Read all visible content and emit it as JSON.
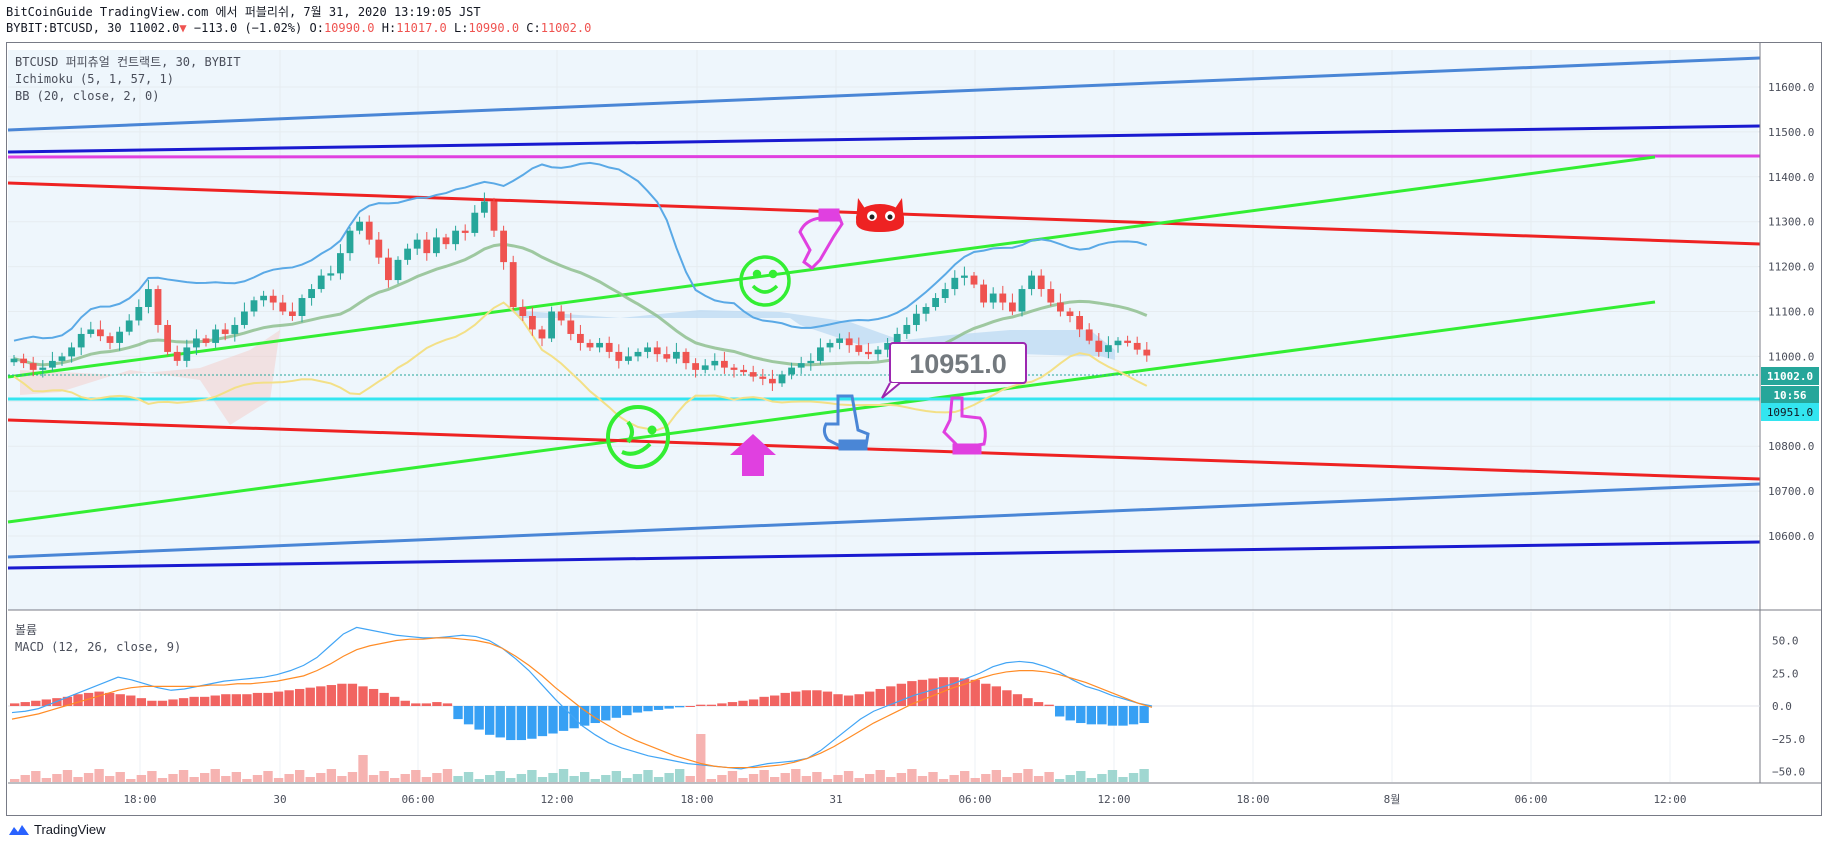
{
  "header": {
    "line1": "BitCoinGuide TradingView.com 에서 퍼블리쉬, 7월 31, 2020 13:19:05 JST",
    "symbol": "BYBIT:BTCUSD, 30",
    "last": "11002.0",
    "arrow": "▼",
    "change": "−113.0 (−1.02%)",
    "o_label": "O:",
    "o": "10990.0",
    "h_label": "H:",
    "h": "11017.0",
    "l_label": "L:",
    "l": "10990.0",
    "c_label": "C:",
    "c": "11002.0"
  },
  "legend": {
    "symbol": "BTCUSD 퍼피츄얼 컨트랙트, 30, BYBIT",
    "ichimoku": "Ichimoku (5, 1, 57, 1)",
    "bb": "BB (20, close, 2, 0)"
  },
  "macd_legend": {
    "volume": "볼륨",
    "macd": "MACD (12, 26, close, 9)"
  },
  "footer": {
    "brand": "TradingView"
  },
  "annotation": {
    "price_box": "10951.0"
  },
  "price_labels": {
    "last": "11002.0",
    "countdown": "10:56",
    "hline": "10951.0"
  },
  "colors": {
    "up": "#26a69a",
    "down": "#ef5350",
    "red_candle": "#ef5350",
    "bb": "#5aa9e6",
    "trend_green": "#33ee33",
    "trend_red": "#ee2222",
    "channel_blue": "#4a86d6",
    "channel_navy": "#1a1ad0",
    "magenta": "#e040e0",
    "cyan": "#33e5f0",
    "macd_line": "#42a5f5",
    "signal_line": "#ff8c26",
    "hist_pos": "#ef5350",
    "hist_neg": "#2196f3"
  },
  "chart_data": [
    {
      "type": "candlestick",
      "title": "BTCUSD 퍼피츄얼 컨트랙트, 30, BYBIT",
      "x_ticks": [
        "18:00",
        "30",
        "06:00",
        "12:00",
        "18:00",
        "31",
        "06:00",
        "12:00",
        "18:00",
        "8월",
        "06:00",
        "12:00"
      ],
      "y_ticks": [
        11600,
        11500,
        11400,
        11300,
        11200,
        11100,
        11000,
        10900,
        10800,
        10700,
        10600
      ],
      "y_tick_labels": [
        "11600.0",
        "11500.0",
        "11400.0",
        "11300.0",
        "11200.0",
        "11100.0",
        "11000.0",
        "10900.0",
        "10800.0",
        "10700.0",
        "10600.0"
      ],
      "ylim": [
        10510,
        11680
      ],
      "last_price": 11002.0,
      "horizontal_line": 10951.0,
      "candles_close": [
        10995,
        10985,
        10970,
        10975,
        10990,
        11000,
        11020,
        11050,
        11060,
        11045,
        11030,
        11055,
        11080,
        11110,
        11150,
        11070,
        11010,
        10990,
        11020,
        11040,
        11030,
        11060,
        11050,
        11070,
        11100,
        11125,
        11135,
        11120,
        11100,
        11090,
        11130,
        11150,
        11180,
        11185,
        11230,
        11280,
        11300,
        11260,
        11220,
        11170,
        11215,
        11240,
        11260,
        11230,
        11265,
        11250,
        11280,
        11275,
        11320,
        11345,
        11280,
        11210,
        11110,
        11090,
        11060,
        11040,
        11100,
        11080,
        11050,
        11030,
        11020,
        11030,
        11010,
        10990,
        11000,
        11010,
        11020,
        11005,
        10995,
        11010,
        10985,
        10970,
        10980,
        10990,
        10975,
        10970,
        10965,
        10955,
        10950,
        10940,
        10960,
        10975,
        10985,
        10990,
        11020,
        11030,
        11040,
        11025,
        11010,
        11005,
        11015,
        11030,
        11050,
        11070,
        11095,
        11110,
        11130,
        11150,
        11175,
        11180,
        11160,
        11120,
        11140,
        11120,
        11100,
        11150,
        11180,
        11150,
        11120,
        11100,
        11090,
        11060,
        11035,
        11010,
        11025,
        11035,
        11030,
        11015,
        11002
      ]
    },
    {
      "type": "bar",
      "title": "MACD (12, 26, close, 9)",
      "y_ticks": [
        50.0,
        25.0,
        0.0,
        -25.0,
        -50.0
      ],
      "y_tick_labels": [
        "50.0",
        "25.0",
        "0.0",
        "−25.0",
        "−50.0"
      ],
      "ylim": [
        -57,
        62
      ],
      "histogram": [
        2,
        3,
        4,
        5,
        6,
        7,
        9,
        10,
        11,
        10,
        9,
        8,
        6,
        4,
        4,
        5,
        6,
        7,
        7,
        8,
        9,
        9,
        9,
        10,
        10,
        11,
        12,
        13,
        14,
        15,
        16,
        17,
        17,
        15,
        13,
        10,
        7,
        4,
        2,
        2,
        3,
        2,
        -10,
        -14,
        -18,
        -22,
        -24,
        -26,
        -26,
        -25,
        -23,
        -21,
        -19,
        -17,
        -15,
        -13,
        -11,
        -9,
        -7,
        -5,
        -4,
        -3,
        -2,
        -1,
        0,
        1,
        1,
        2,
        3,
        4,
        5,
        7,
        8,
        10,
        11,
        12,
        12,
        11,
        9,
        8,
        9,
        11,
        13,
        15,
        17,
        19,
        20,
        21,
        22,
        22,
        21,
        20,
        17,
        15,
        12,
        9,
        6,
        3,
        1,
        -8,
        -11,
        -13,
        -14,
        -14,
        -15,
        -15,
        -14,
        -13
      ],
      "macd": [
        -5,
        -4,
        -2,
        2,
        6,
        10,
        14,
        18,
        22,
        20,
        17,
        14,
        12,
        13,
        15,
        17,
        19,
        20,
        21,
        22,
        24,
        27,
        31,
        37,
        46,
        55,
        60,
        58,
        56,
        54,
        53,
        52,
        52,
        53,
        54,
        53,
        50,
        44,
        36,
        27,
        16,
        5,
        -5,
        -15,
        -22,
        -28,
        -32,
        -35,
        -38,
        -40,
        -42,
        -44,
        -45,
        -46,
        -47,
        -48,
        -46,
        -44,
        -43,
        -42,
        -40,
        -34,
        -26,
        -18,
        -10,
        -4,
        0,
        4,
        8,
        11,
        14,
        17,
        21,
        25,
        30,
        33,
        34,
        33,
        30,
        26,
        20,
        15,
        12,
        8,
        5,
        2,
        0
      ],
      "signal": [
        -10,
        -8,
        -6,
        -3,
        0,
        3,
        6,
        9,
        12,
        14,
        15,
        15,
        15,
        15,
        15,
        16,
        16,
        17,
        17,
        18,
        19,
        21,
        23,
        27,
        32,
        38,
        43,
        46,
        48,
        50,
        51,
        51,
        52,
        52,
        51,
        50,
        48,
        44,
        38,
        31,
        23,
        14,
        6,
        -2,
        -9,
        -15,
        -21,
        -26,
        -30,
        -34,
        -38,
        -41,
        -44,
        -46,
        -47,
        -47,
        -47,
        -46,
        -45,
        -43,
        -40,
        -36,
        -31,
        -25,
        -19,
        -13,
        -8,
        -3,
        2,
        6,
        10,
        14,
        17,
        21,
        24,
        26,
        27,
        27,
        26,
        24,
        21,
        18,
        14,
        10,
        6,
        2,
        -1
      ]
    }
  ]
}
